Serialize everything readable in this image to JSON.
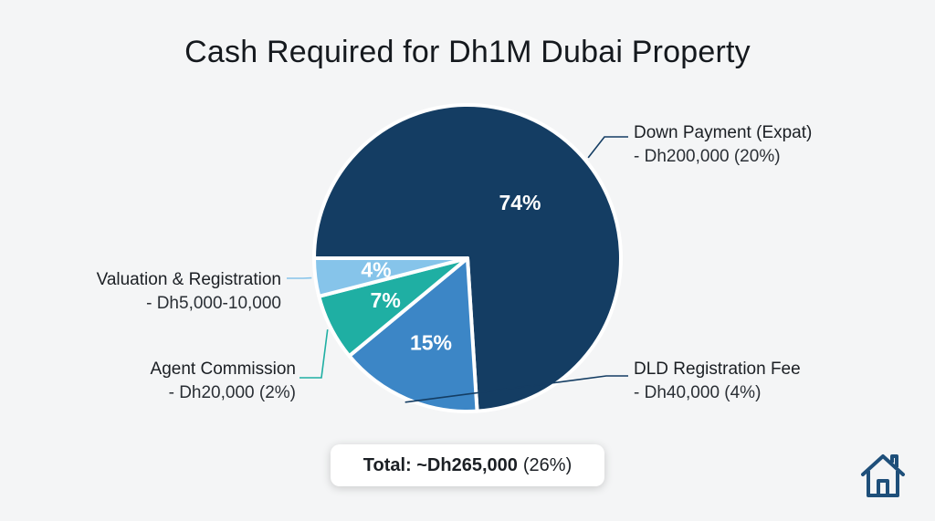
{
  "title": "Cash Required for Dh1M Dubai Property",
  "chart_data": {
    "type": "pie",
    "title": "Cash Required for Dh1M Dubai Property",
    "slices": [
      {
        "key": "down_payment",
        "name": "Down Payment (Expat)",
        "sub": "- Dh200,000 (20%)",
        "percent": 74,
        "value_label": "74%",
        "color": "#143d63"
      },
      {
        "key": "dld_fee",
        "name": "DLD Registration Fee",
        "sub": "- Dh40,000 (4%)",
        "percent": 15,
        "value_label": "15%",
        "color": "#3c86c6"
      },
      {
        "key": "agent_commission",
        "name": "Agent Commission",
        "sub": "- Dh20,000 (2%)",
        "percent": 7,
        "value_label": "7%",
        "color": "#1fafa3"
      },
      {
        "key": "valuation",
        "name": "Valuation & Registration",
        "sub": "- Dh5,000-10,000",
        "percent": 4,
        "value_label": "4%",
        "color": "#86c4ea"
      }
    ],
    "total": {
      "bold": "Total: ~Dh265,000",
      "plain": "(26%)"
    }
  },
  "icons": {
    "corner": "home-icon"
  },
  "colors": {
    "leader_dark": "#143d63",
    "leader_teal": "#1fafa3",
    "leader_light": "#86c4ea"
  }
}
